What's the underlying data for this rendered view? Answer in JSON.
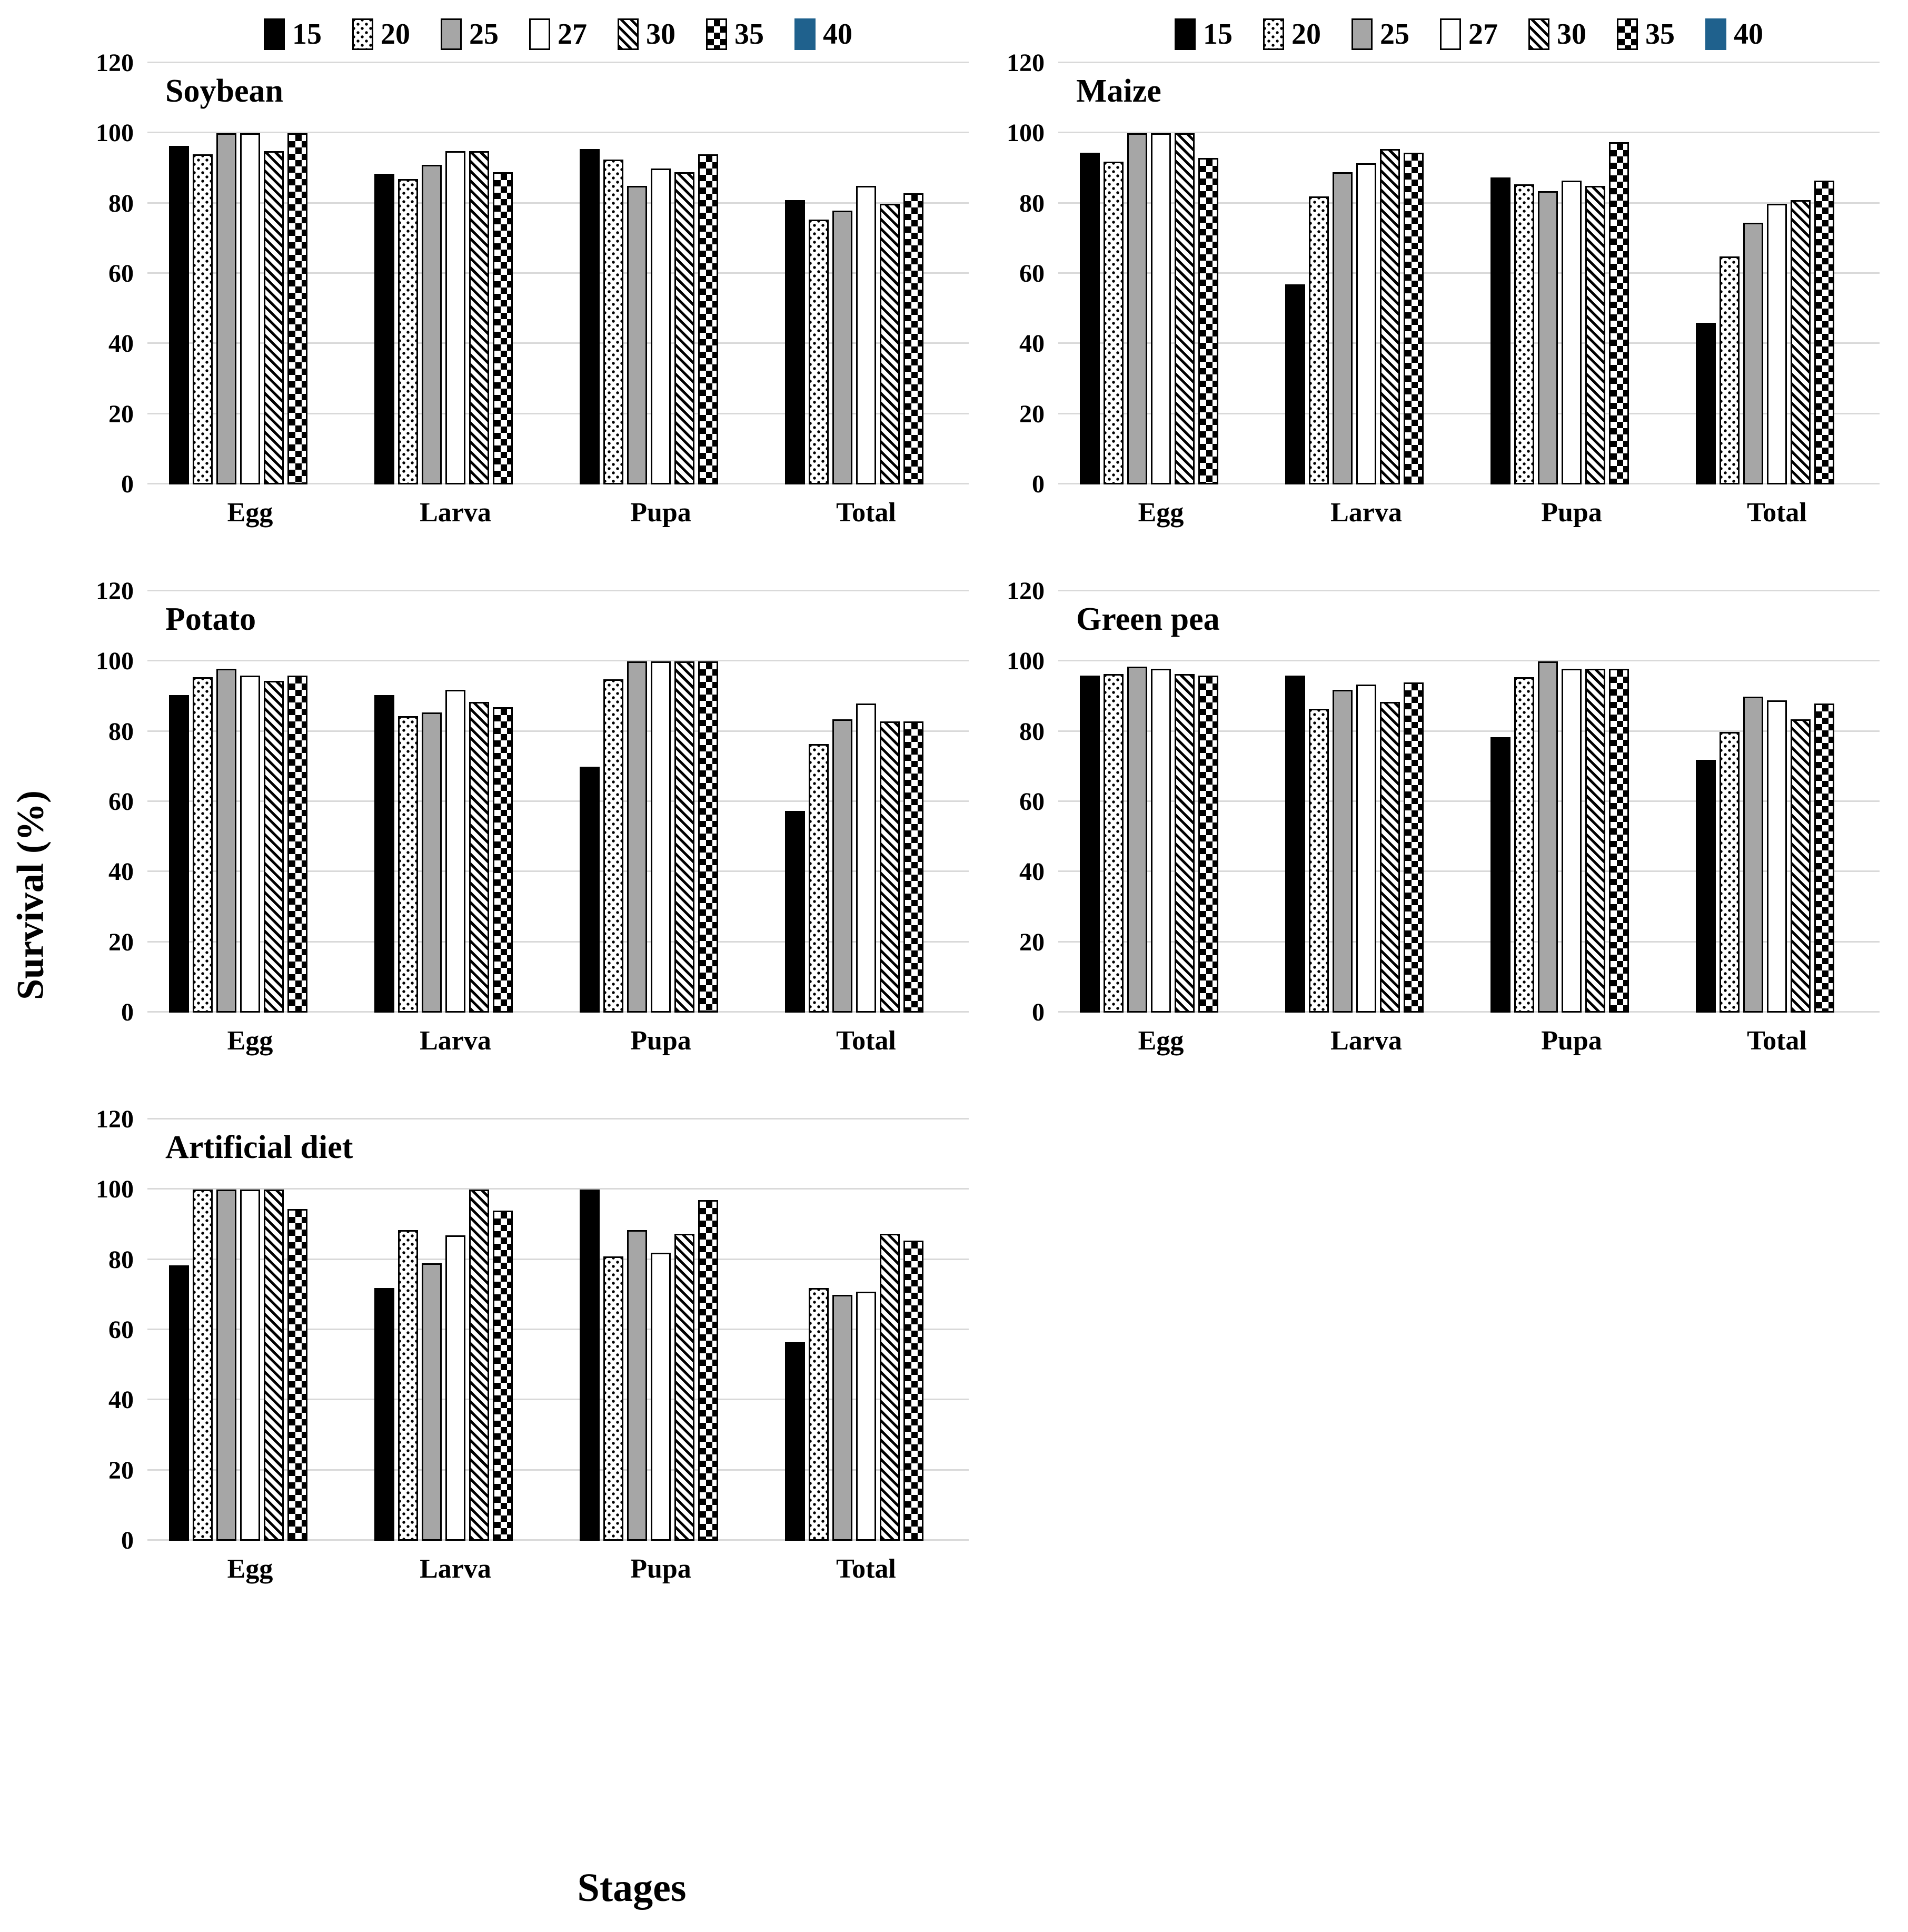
{
  "page": {
    "y_axis_label": "Survival (%)",
    "x_axis_label": "Stages"
  },
  "colors": {
    "bar_black": "#000000",
    "bar_gray": "#a6a6a6",
    "bar_white": "#ffffff",
    "bar_blue": "#1f618d",
    "gridline": "#d9d9d9"
  },
  "legend": {
    "items": [
      {
        "label": "15",
        "pattern": "solid-black"
      },
      {
        "label": "20",
        "pattern": "dotted"
      },
      {
        "label": "25",
        "pattern": "solid-gray"
      },
      {
        "label": "27",
        "pattern": "solid-white"
      },
      {
        "label": "30",
        "pattern": "diagonal-stripes"
      },
      {
        "label": "35",
        "pattern": "checkerboard"
      },
      {
        "label": "40",
        "pattern": "solid-blue"
      }
    ]
  },
  "chart_data": [
    {
      "type": "bar",
      "title": "Soybean",
      "legend_visible": true,
      "xlabel": "",
      "ylabel": "Survival (%)",
      "ylim": [
        0,
        120
      ],
      "y_ticks": [
        0,
        20,
        40,
        60,
        80,
        100,
        120
      ],
      "grid": true,
      "categories": [
        "Egg",
        "Larva",
        "Pupa",
        "Total"
      ],
      "series": [
        {
          "name": "15",
          "values": [
            96.5,
            88.5,
            95.5,
            81
          ]
        },
        {
          "name": "20",
          "values": [
            94,
            87,
            92.5,
            75.5
          ]
        },
        {
          "name": "25",
          "values": [
            100,
            91,
            85,
            78
          ]
        },
        {
          "name": "27",
          "values": [
            100,
            95,
            90,
            85
          ]
        },
        {
          "name": "30",
          "values": [
            95,
            95,
            89,
            80
          ]
        },
        {
          "name": "35",
          "values": [
            100,
            89,
            94,
            83
          ]
        },
        {
          "name": "40",
          "values": [
            0,
            0,
            0,
            0
          ]
        }
      ]
    },
    {
      "type": "bar",
      "title": "Maize",
      "legend_visible": true,
      "xlabel": "",
      "ylabel": "Survival (%)",
      "ylim": [
        0,
        120
      ],
      "y_ticks": [
        0,
        20,
        40,
        60,
        80,
        100,
        120
      ],
      "grid": true,
      "categories": [
        "Egg",
        "Larva",
        "Pupa",
        "Total"
      ],
      "series": [
        {
          "name": "15",
          "values": [
            94.5,
            57,
            87.5,
            46
          ]
        },
        {
          "name": "20",
          "values": [
            92,
            82,
            85.5,
            65
          ]
        },
        {
          "name": "25",
          "values": [
            100,
            89,
            83.5,
            74.5
          ]
        },
        {
          "name": "27",
          "values": [
            100,
            91.5,
            86.5,
            80
          ]
        },
        {
          "name": "30",
          "values": [
            100,
            95.5,
            85,
            81
          ]
        },
        {
          "name": "35",
          "values": [
            93,
            94.5,
            97.5,
            86.5
          ]
        },
        {
          "name": "40",
          "values": [
            0,
            0,
            0,
            0
          ]
        }
      ]
    },
    {
      "type": "bar",
      "title": "Potato",
      "legend_visible": false,
      "xlabel": "",
      "ylabel": "Survival (%)",
      "ylim": [
        0,
        120
      ],
      "y_ticks": [
        0,
        20,
        40,
        60,
        80,
        100,
        120
      ],
      "grid": true,
      "categories": [
        "Egg",
        "Larva",
        "Pupa",
        "Total"
      ],
      "series": [
        {
          "name": "15",
          "values": [
            90.5,
            90.5,
            70,
            57.5
          ]
        },
        {
          "name": "20",
          "values": [
            95.5,
            84.5,
            95,
            76.5
          ]
        },
        {
          "name": "25",
          "values": [
            98,
            85.5,
            100,
            83.5
          ]
        },
        {
          "name": "27",
          "values": [
            96,
            92,
            100,
            88
          ]
        },
        {
          "name": "30",
          "values": [
            94.5,
            88.5,
            100,
            83
          ]
        },
        {
          "name": "35",
          "values": [
            96,
            87,
            100,
            83
          ]
        },
        {
          "name": "40",
          "values": [
            0,
            0,
            0,
            0
          ]
        }
      ]
    },
    {
      "type": "bar",
      "title": "Green pea",
      "legend_visible": false,
      "xlabel": "",
      "ylabel": "Survival (%)",
      "ylim": [
        0,
        120
      ],
      "y_ticks": [
        0,
        20,
        40,
        60,
        80,
        100,
        120
      ],
      "grid": true,
      "categories": [
        "Egg",
        "Larva",
        "Pupa",
        "Total"
      ],
      "series": [
        {
          "name": "15",
          "values": [
            96,
            96,
            78.5,
            72
          ]
        },
        {
          "name": "20",
          "values": [
            96.5,
            86.5,
            95.5,
            80
          ]
        },
        {
          "name": "25",
          "values": [
            98.5,
            92,
            100,
            90
          ]
        },
        {
          "name": "27",
          "values": [
            98,
            93.5,
            98,
            89
          ]
        },
        {
          "name": "30",
          "values": [
            96.5,
            88.5,
            98,
            83.5
          ]
        },
        {
          "name": "35",
          "values": [
            96,
            94,
            98,
            88
          ]
        },
        {
          "name": "40",
          "values": [
            0,
            0,
            0,
            0
          ]
        }
      ]
    },
    {
      "type": "bar",
      "title": "Artificial diet",
      "legend_visible": false,
      "xlabel": "",
      "ylabel": "Survival (%)",
      "ylim": [
        0,
        120
      ],
      "y_ticks": [
        0,
        20,
        40,
        60,
        80,
        100,
        120
      ],
      "grid": true,
      "categories": [
        "Egg",
        "Larva",
        "Pupa",
        "Total"
      ],
      "series": [
        {
          "name": "15",
          "values": [
            78.5,
            72,
            100,
            56.5
          ]
        },
        {
          "name": "20",
          "values": [
            100,
            88.5,
            81,
            72
          ]
        },
        {
          "name": "25",
          "values": [
            100,
            79,
            88.5,
            70
          ]
        },
        {
          "name": "27",
          "values": [
            100,
            87,
            82,
            71
          ]
        },
        {
          "name": "30",
          "values": [
            100,
            100,
            87.5,
            87.5
          ]
        },
        {
          "name": "35",
          "values": [
            94.5,
            94,
            97,
            85.5
          ]
        },
        {
          "name": "40",
          "values": [
            0,
            0,
            0,
            0
          ]
        }
      ]
    }
  ]
}
